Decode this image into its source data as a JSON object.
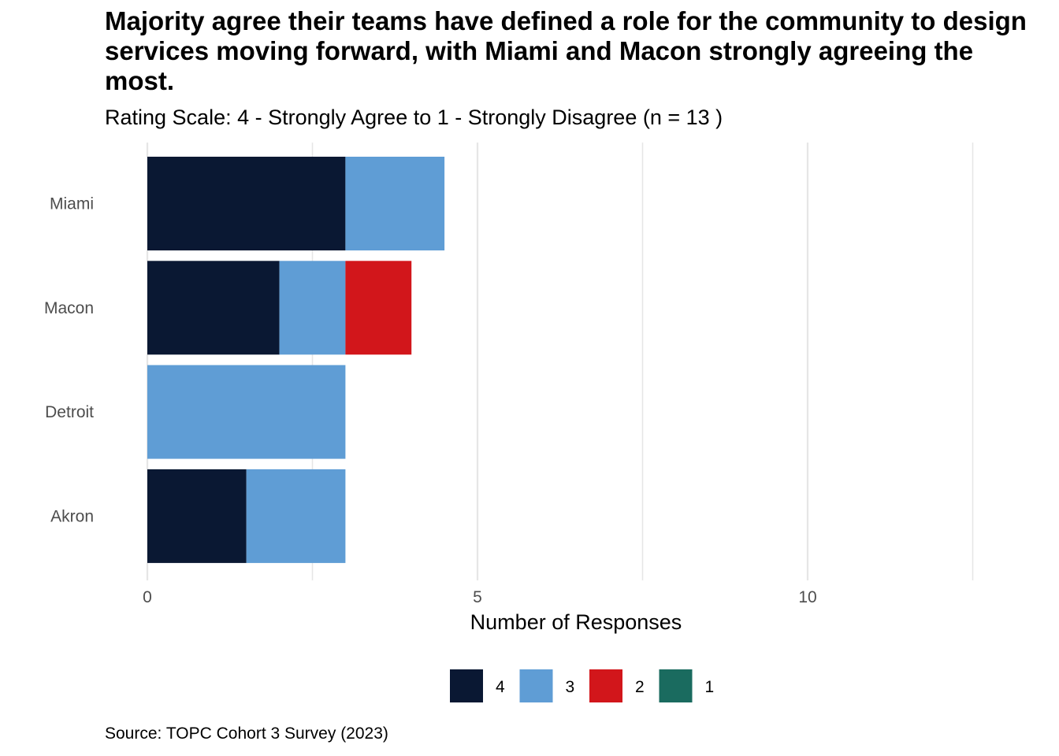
{
  "chart_data": {
    "type": "bar",
    "orientation": "horizontal",
    "stacked": true,
    "title": "Majority agree their teams have defined a role for the community to design services moving forward, with Miami and Macon strongly agreeing the most.",
    "subtitle": "Rating Scale: 4 - Strongly Agree to 1 - Strongly Disagree (n = 13 )",
    "caption": "Source: TOPC Cohort 3 Survey (2023)",
    "xlabel": "Number of Responses",
    "ylabel": "",
    "xlim": [
      0,
      13
    ],
    "xticks": [
      0,
      5,
      10
    ],
    "xtick_labels": [
      "0",
      "5",
      "10"
    ],
    "grid": true,
    "legend_position": "bottom",
    "categories": [
      "Miami",
      "Macon",
      "Detroit",
      "Akron"
    ],
    "series": [
      {
        "name": "4",
        "color": "#0a1833",
        "values": [
          3,
          2,
          0,
          1.5
        ]
      },
      {
        "name": "3",
        "color": "#5f9dd5",
        "values": [
          1.5,
          1,
          3,
          1.5
        ]
      },
      {
        "name": "2",
        "color": "#d2161b",
        "values": [
          0,
          1,
          0,
          0
        ]
      },
      {
        "name": "1",
        "color": "#1a6b5f",
        "values": [
          0,
          0,
          0,
          0
        ]
      }
    ]
  }
}
